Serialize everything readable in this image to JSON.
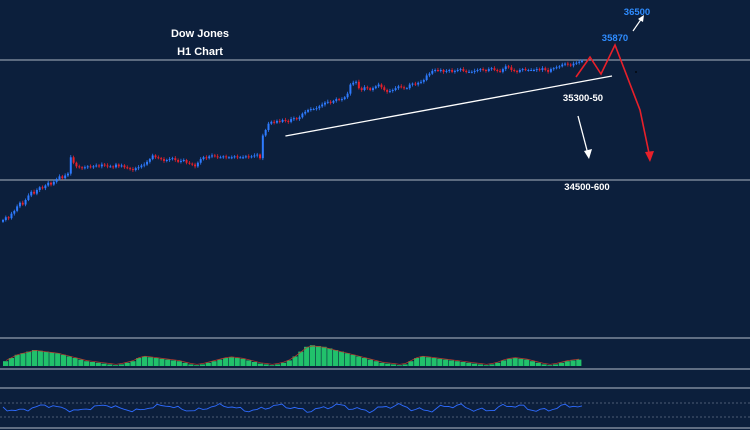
{
  "chart_data": {
    "type": "candlestick",
    "title_line1": "Dow Jones",
    "title_line2": "H1 Chart",
    "instrument": "Dow Jones",
    "timeframe": "H1",
    "levels": [
      {
        "label": "36500",
        "value": 36500,
        "color": "#2e8cff"
      },
      {
        "label": "35870",
        "value": 35870,
        "color": "#2e8cff"
      },
      {
        "label": "35300-50",
        "value": 35325,
        "color": "#ffffff"
      },
      {
        "label": "34500-600",
        "value": 34550,
        "color": "#ffffff"
      }
    ],
    "horizontal_lines": [
      35870,
      34550
    ],
    "trendline": {
      "from_index": 100,
      "to_index": 205
    },
    "projections": {
      "bearish_color": "#e8202a",
      "arrow_color": "#ffffff"
    },
    "colors": {
      "background": "#0c1f3c",
      "bull": "#2e7bff",
      "bear": "#e8202a",
      "histogram": "#21c16b",
      "oscillator": "#2e6bff",
      "gridline": "#c8d0da"
    },
    "close_series": [
      34110,
      34140,
      34130,
      34180,
      34210,
      34260,
      34300,
      34280,
      34330,
      34380,
      34420,
      34400,
      34440,
      34470,
      34460,
      34490,
      34520,
      34500,
      34530,
      34560,
      34590,
      34570,
      34600,
      34620,
      34800,
      34740,
      34700,
      34690,
      34680,
      34690,
      34700,
      34690,
      34700,
      34710,
      34700,
      34720,
      34710,
      34700,
      34700,
      34690,
      34720,
      34700,
      34710,
      34690,
      34680,
      34670,
      34660,
      34680,
      34690,
      34710,
      34720,
      34750,
      34780,
      34820,
      34800,
      34790,
      34780,
      34760,
      34770,
      34780,
      34790,
      34770,
      34750,
      34760,
      34770,
      34740,
      34730,
      34720,
      34700,
      34740,
      34780,
      34800,
      34790,
      34810,
      34820,
      34810,
      34800,
      34800,
      34810,
      34800,
      34800,
      34800,
      34810,
      34800,
      34800,
      34800,
      34810,
      34800,
      34810,
      34820,
      34830,
      34790,
      35040,
      35100,
      35170,
      35190,
      35180,
      35200,
      35190,
      35210,
      35200,
      35190,
      35220,
      35230,
      35220,
      35240,
      35280,
      35300,
      35320,
      35330,
      35330,
      35340,
      35360,
      35380,
      35400,
      35410,
      35400,
      35420,
      35440,
      35430,
      35440,
      35460,
      35500,
      35600,
      35620,
      35630,
      35560,
      35540,
      35570,
      35560,
      35540,
      35560,
      35580,
      35600,
      35570,
      35540,
      35520,
      35530,
      35540,
      35560,
      35580,
      35570,
      35560,
      35560,
      35600,
      35610,
      35600,
      35620,
      35630,
      35650,
      35700,
      35720,
      35750,
      35760,
      35750,
      35760,
      35740,
      35750,
      35760,
      35740,
      35750,
      35760,
      35770,
      35750,
      35740,
      35740,
      35740,
      35750,
      35760,
      35770,
      35760,
      35750,
      35770,
      35780,
      35760,
      35750,
      35740,
      35770,
      35800,
      35790,
      35760,
      35750,
      35740,
      35760,
      35770,
      35760,
      35760,
      35760,
      35760,
      35770,
      35760,
      35780,
      35760,
      35740,
      35770,
      35780,
      35790,
      35800,
      35820,
      35830,
      35820,
      35810,
      35830,
      35840,
      35850,
      35860
    ],
    "histogram_values": [
      0.3,
      0.5,
      0.7,
      0.8,
      0.9,
      1.0,
      0.95,
      0.9,
      0.85,
      0.8,
      0.7,
      0.6,
      0.5,
      0.4,
      0.3,
      0.25,
      0.2,
      0.15,
      0.1,
      0.05,
      0.1,
      0.2,
      0.3,
      0.5,
      0.6,
      0.55,
      0.5,
      0.45,
      0.4,
      0.35,
      0.3,
      0.2,
      0.1,
      0.05,
      0.1,
      0.2,
      0.3,
      0.4,
      0.5,
      0.55,
      0.5,
      0.45,
      0.35,
      0.25,
      0.15,
      0.1,
      0.05,
      0.1,
      0.2,
      0.35,
      0.6,
      0.9,
      1.2,
      1.3,
      1.25,
      1.2,
      1.1,
      1.0,
      0.9,
      0.8,
      0.7,
      0.6,
      0.5,
      0.4,
      0.3,
      0.2,
      0.15,
      0.1,
      0.05,
      0.1,
      0.3,
      0.5,
      0.6,
      0.55,
      0.5,
      0.45,
      0.4,
      0.35,
      0.3,
      0.25,
      0.2,
      0.15,
      0.1,
      0.05,
      0.1,
      0.2,
      0.35,
      0.45,
      0.5,
      0.45,
      0.4,
      0.3,
      0.2,
      0.1,
      0.05,
      0.1,
      0.2,
      0.3,
      0.35,
      0.4
    ]
  }
}
